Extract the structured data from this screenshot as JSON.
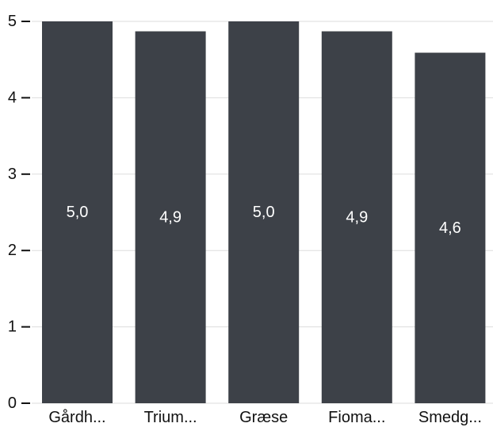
{
  "chart_data": {
    "type": "bar",
    "categories": [
      "Gårdh...",
      "Trium...",
      "Græse",
      "Fioma...",
      "Smedg..."
    ],
    "values": [
      5.0,
      4.87,
      5.0,
      4.87,
      4.59
    ],
    "data_labels": [
      "5,0",
      "4,9",
      "5,0",
      "4,9",
      "4,6"
    ],
    "title": "",
    "xlabel": "",
    "ylabel": "",
    "ylim": [
      0,
      5
    ],
    "yticks": [
      0,
      1,
      2,
      3,
      4,
      5
    ],
    "ytick_labels": [
      "0",
      "1",
      "2",
      "3",
      "4",
      "5"
    ],
    "grid": true,
    "bar_color": "#3d4148",
    "grid_color": "#dddddd",
    "label_color": "#ffffff"
  }
}
